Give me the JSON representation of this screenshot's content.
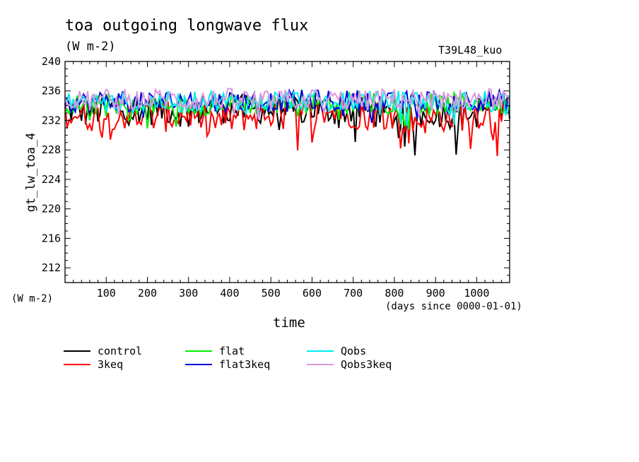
{
  "header": {
    "title": "toa outgoing longwave flux",
    "units": "(W m-2)",
    "run": "T39L48_kuo"
  },
  "axes": {
    "ylabel": "gt_lw_toa_4",
    "yunits": "(W m-2)",
    "xlabel": "time",
    "xunits": "(days since 0000-01-01)"
  },
  "chart_data": {
    "type": "line",
    "title": "toa outgoing longwave flux",
    "xlabel": "time",
    "ylabel": "gt_lw_toa_4",
    "xlim": [
      0,
      1080
    ],
    "ylim": [
      210,
      240
    ],
    "xticks": [
      100,
      200,
      300,
      400,
      500,
      600,
      700,
      800,
      900,
      1000
    ],
    "yticks": [
      212,
      216,
      220,
      224,
      228,
      232,
      236,
      240
    ],
    "legend_position": "bottom",
    "x_step_days": 5,
    "series": [
      {
        "name": "control",
        "color": "#000000",
        "x": [
          0,
          60,
          120,
          180,
          240,
          300,
          360,
          420,
          480,
          540,
          600,
          660,
          720,
          780,
          840,
          900,
          960,
          1020,
          1080
        ],
        "values": [
          233.5,
          233.0,
          233.8,
          233.2,
          233.6,
          233.0,
          233.8,
          233.4,
          233.6,
          233.2,
          233.7,
          233.3,
          233.6,
          232.6,
          232.5,
          233.2,
          232.8,
          233.5,
          234.0
        ]
      },
      {
        "name": "3keq",
        "color": "#ff0000",
        "x": [
          0,
          60,
          120,
          180,
          240,
          300,
          360,
          420,
          480,
          540,
          600,
          660,
          720,
          780,
          840,
          900,
          960,
          1020,
          1080
        ],
        "values": [
          233.0,
          232.5,
          232.8,
          232.6,
          232.4,
          233.0,
          231.8,
          232.4,
          232.8,
          233.2,
          233.0,
          233.2,
          232.8,
          233.0,
          231.8,
          232.4,
          232.6,
          233.0,
          232.8
        ]
      },
      {
        "name": "flat",
        "color": "#00ee00",
        "x": [
          0,
          60,
          120,
          180,
          240,
          300,
          360,
          420,
          480,
          540,
          600,
          660,
          720,
          780,
          840,
          900,
          960,
          1020,
          1080
        ],
        "values": [
          234.2,
          234.0,
          234.4,
          233.4,
          234.2,
          234.0,
          234.2,
          234.6,
          234.0,
          234.4,
          234.6,
          234.2,
          234.8,
          234.2,
          234.4,
          234.0,
          234.4,
          234.6,
          234.2
        ]
      },
      {
        "name": "flat3keq",
        "color": "#0000dd",
        "x": [
          0,
          60,
          120,
          180,
          240,
          300,
          360,
          420,
          480,
          540,
          600,
          660,
          720,
          780,
          840,
          900,
          960,
          1020,
          1080
        ],
        "values": [
          234.6,
          234.4,
          234.8,
          234.4,
          234.6,
          234.8,
          234.4,
          234.8,
          234.6,
          234.6,
          234.8,
          234.6,
          234.8,
          234.4,
          234.6,
          234.8,
          234.6,
          234.8,
          234.6
        ]
      },
      {
        "name": "Qobs",
        "color": "#00eeee",
        "x": [
          0,
          60,
          120,
          180,
          240,
          300,
          360,
          420,
          480,
          540,
          600,
          660,
          720,
          780,
          840,
          900,
          960,
          1020,
          1080
        ],
        "values": [
          234.4,
          234.6,
          234.2,
          234.4,
          234.6,
          234.4,
          234.8,
          234.2,
          234.6,
          234.8,
          234.6,
          234.4,
          234.8,
          234.6,
          234.8,
          234.6,
          234.4,
          234.8,
          234.6
        ]
      },
      {
        "name": "Qobs3keq",
        "color": "#dd99dd",
        "x": [
          0,
          60,
          120,
          180,
          240,
          300,
          360,
          420,
          480,
          540,
          600,
          660,
          720,
          780,
          840,
          900,
          960,
          1020,
          1080
        ],
        "values": [
          234.8,
          234.6,
          235.0,
          234.8,
          235.0,
          234.6,
          234.8,
          235.0,
          234.6,
          234.8,
          235.0,
          234.8,
          234.6,
          235.0,
          234.8,
          234.6,
          234.8,
          235.0,
          234.8
        ]
      }
    ]
  }
}
